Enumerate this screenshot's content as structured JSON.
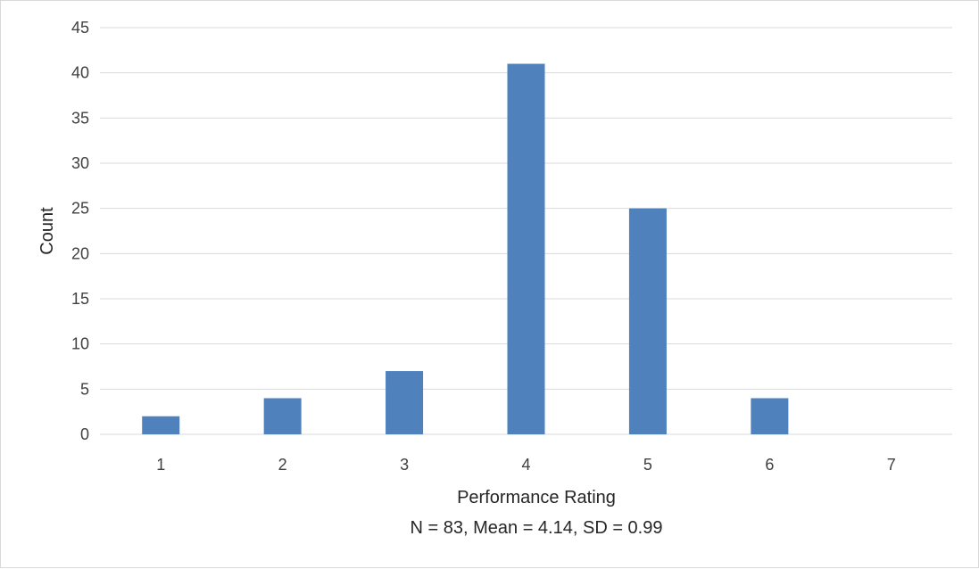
{
  "chart_data": {
    "type": "bar",
    "categories": [
      "1",
      "2",
      "3",
      "4",
      "5",
      "6",
      "7"
    ],
    "values": [
      2,
      4,
      7,
      41,
      25,
      4,
      0
    ],
    "xlabel": "Performance Rating",
    "ylabel": "Count",
    "note": "N = 83, Mean = 4.14, SD = 0.99",
    "ylim": [
      0,
      45
    ],
    "yticks": [
      "0",
      "5",
      "10",
      "15",
      "20",
      "25",
      "30",
      "35",
      "40",
      "45"
    ],
    "grid": true,
    "legend": "none",
    "bar_color": "#4f81bd",
    "grid_color": "#d9d9d9"
  }
}
